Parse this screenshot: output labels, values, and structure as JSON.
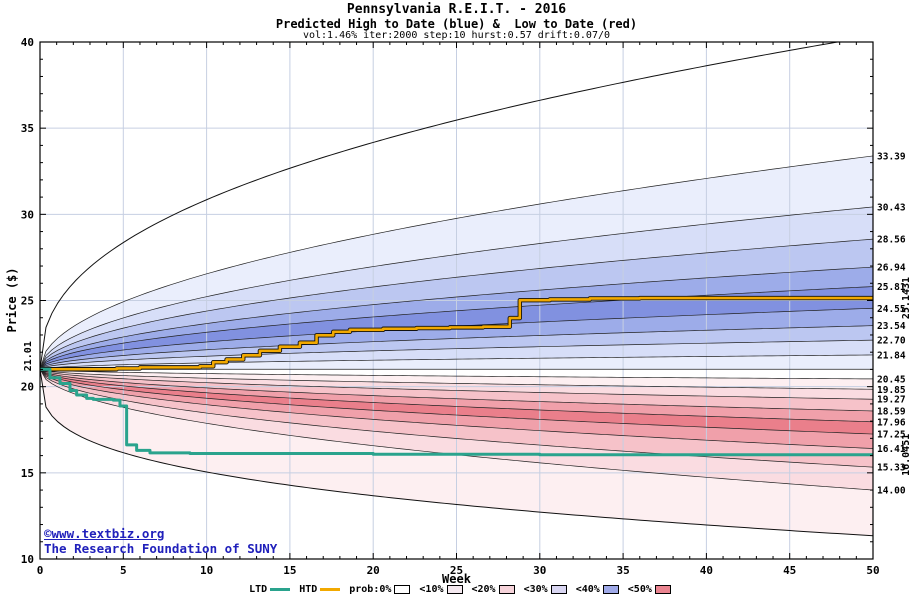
{
  "chart_data": {
    "type": "area",
    "title": "Pennsylvania R.E.I.T. - 2016",
    "subtitle": "Predicted High to Date (blue) &  Low to Date (red)",
    "params_line": "vol:1.46% iter:2000 step:10 hurst:0.57 drift:0.07/0",
    "xlabel": "Week",
    "ylabel": "Price ($)",
    "xlim": [
      0,
      50
    ],
    "ylim": [
      10,
      40
    ],
    "x_tick_step": 5,
    "x_minor_step": 1,
    "y_tick_step": 5,
    "y_minor_step": 1,
    "grid": true,
    "grid_color": "#c6cfe2",
    "start_price": 21.01,
    "start_price_label": "21.01",
    "boundary_pow": 0.5,
    "envelope": {
      "label": "prob:0%",
      "top_end": 40.35,
      "bottom_end": 11.35,
      "top_pow": 0.42,
      "bottom_pow": 0.3
    },
    "high_fan": {
      "side": "high-to-date",
      "color_shades": [
        "#eaeefc",
        "#d7def8",
        "#bcc7f1",
        "#9dace9",
        "#8191e0"
      ],
      "boundaries": [
        33.39,
        30.43,
        28.56,
        26.94,
        25.81,
        24.55,
        23.54,
        22.7,
        21.84,
        21.01
      ]
    },
    "low_fan": {
      "side": "low-to-date",
      "color_shades": [
        "#fdeff1",
        "#fadce1",
        "#f6c2c9",
        "#f0a0aa",
        "#ea7f8b"
      ],
      "boundaries": [
        20.45,
        19.85,
        19.27,
        18.59,
        17.96,
        17.25,
        16.41,
        15.33,
        14.0
      ]
    },
    "right_axis_labels": [
      "33.39",
      "30.43",
      "28.56",
      "26.94",
      "25.81",
      "24.55",
      "23.54",
      "22.70",
      "21.84",
      "20.45",
      "19.85",
      "19.27",
      "18.59",
      "17.96",
      "17.25",
      "16.41",
      "15.33",
      "14.00"
    ],
    "htd_line": {
      "name": "HTD",
      "color": "#f2a900",
      "final_value": 25.1431,
      "final_label": "25.1431",
      "steps": [
        [
          0,
          21.01
        ],
        [
          4.6,
          21.06
        ],
        [
          6,
          21.12
        ],
        [
          9.6,
          21.18
        ],
        [
          10.4,
          21.42
        ],
        [
          11.2,
          21.58
        ],
        [
          12.2,
          21.82
        ],
        [
          13.2,
          22.08
        ],
        [
          14.4,
          22.32
        ],
        [
          15.6,
          22.55
        ],
        [
          16.6,
          22.98
        ],
        [
          17.6,
          23.18
        ],
        [
          18.6,
          23.3
        ],
        [
          20.6,
          23.36
        ],
        [
          22.6,
          23.4
        ],
        [
          24.6,
          23.44
        ],
        [
          26.6,
          23.48
        ],
        [
          28.2,
          23.98
        ],
        [
          28.8,
          25.02
        ],
        [
          30.6,
          25.06
        ],
        [
          33.0,
          25.12
        ],
        [
          36.0,
          25.14
        ],
        [
          50,
          25.1431
        ]
      ]
    },
    "ltd_line": {
      "name": "LTD",
      "color": "#2aa38d",
      "final_value": 16.0451,
      "final_label": "16.0451",
      "steps": [
        [
          0,
          21.01
        ],
        [
          0.6,
          20.52
        ],
        [
          1.2,
          20.18
        ],
        [
          1.8,
          19.78
        ],
        [
          2.2,
          19.52
        ],
        [
          2.8,
          19.32
        ],
        [
          3.2,
          19.26
        ],
        [
          4.4,
          19.22
        ],
        [
          4.8,
          18.88
        ],
        [
          5.2,
          16.62
        ],
        [
          5.8,
          16.3
        ],
        [
          6.6,
          16.16
        ],
        [
          9,
          16.12
        ],
        [
          20,
          16.08
        ],
        [
          30,
          16.05
        ],
        [
          50,
          16.0451
        ]
      ]
    },
    "legend": [
      {
        "label": "LTD",
        "swatch": "line",
        "color": "#2aa38d"
      },
      {
        "label": "HTD",
        "swatch": "line",
        "color": "#f2a900"
      },
      {
        "label": "prob:0%",
        "swatch": "box",
        "color": "#ffffff"
      },
      {
        "label": "<10%",
        "swatch": "box",
        "color": "#f5e9f0"
      },
      {
        "label": "<20%",
        "swatch": "box",
        "color": "#f6d3da"
      },
      {
        "label": "<30%",
        "swatch": "box",
        "color": "#d9d6f2"
      },
      {
        "label": "<40%",
        "swatch": "box",
        "color": "#9fa9e8"
      },
      {
        "label": "<50%",
        "swatch": "box",
        "color": "#ea8490"
      }
    ],
    "watermark": {
      "line1": "©www.textbiz.org",
      "line2": "The Research Foundation of SUNY",
      "color": "#2020bb"
    }
  }
}
